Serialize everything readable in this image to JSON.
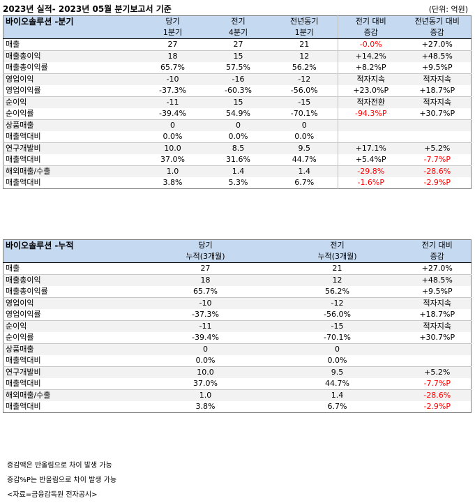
{
  "title": "2023년 실적- 2023년 05월 분기보고서 기준",
  "unit": "(단위: 억원)",
  "quarter": {
    "section": "바이오솔루션 -분기",
    "headers": [
      [
        "당기",
        "1분기"
      ],
      [
        "전기",
        "4분기"
      ],
      [
        "전년동기",
        "1분기"
      ],
      [
        "전기 대비",
        "증감"
      ],
      [
        "전년동기 대비",
        "증감"
      ]
    ],
    "rows": [
      {
        "label": "매출",
        "cur": "27",
        "prev": "27",
        "yoy": "21",
        "chg_prev": "-0.0%",
        "chg_prev_red": true,
        "chg_yoy": "+27.0%",
        "chg_yoy_red": false,
        "shade": false,
        "end": true
      },
      {
        "label": "매출총이익",
        "cur": "18",
        "prev": "15",
        "yoy": "12",
        "chg_prev": "+14.2%",
        "chg_prev_red": false,
        "chg_yoy": "+48.5%",
        "chg_yoy_red": false,
        "shade": true,
        "end": false
      },
      {
        "label": " 매출총이익률",
        "cur": "65.7%",
        "prev": "57.5%",
        "yoy": "56.2%",
        "chg_prev": "+8.2%P",
        "chg_prev_red": false,
        "chg_yoy": "+9.5%P",
        "chg_yoy_red": false,
        "shade": false,
        "end": true
      },
      {
        "label": "영업이익",
        "cur": "-10",
        "prev": "-16",
        "yoy": "-12",
        "chg_prev": "적자지속",
        "chg_prev_red": false,
        "chg_yoy": "적자지속",
        "chg_yoy_red": false,
        "shade": true,
        "end": false
      },
      {
        "label": " 영업이익률",
        "cur": "-37.3%",
        "prev": "-60.3%",
        "yoy": "-56.0%",
        "chg_prev": "+23.0%P",
        "chg_prev_red": false,
        "chg_yoy": "+18.7%P",
        "chg_yoy_red": false,
        "shade": false,
        "end": true
      },
      {
        "label": "순이익",
        "cur": "-11",
        "prev": "15",
        "yoy": "-15",
        "chg_prev": "적자전환",
        "chg_prev_red": false,
        "chg_yoy": "적자지속",
        "chg_yoy_red": false,
        "shade": true,
        "end": false
      },
      {
        "label": " 순이익률",
        "cur": "-39.4%",
        "prev": "54.9%",
        "yoy": "-70.1%",
        "chg_prev": "-94.3%P",
        "chg_prev_red": true,
        "chg_yoy": "+30.7%P",
        "chg_yoy_red": false,
        "shade": false,
        "end": true
      },
      {
        "label": "상품매출",
        "cur": "0",
        "prev": "0",
        "yoy": "0",
        "chg_prev": "",
        "chg_prev_red": false,
        "chg_yoy": "",
        "chg_yoy_red": false,
        "shade": true,
        "end": false
      },
      {
        "label": " 매출액대비",
        "cur": "0.0%",
        "prev": "0.0%",
        "yoy": "0.0%",
        "chg_prev": "",
        "chg_prev_red": false,
        "chg_yoy": "",
        "chg_yoy_red": false,
        "shade": false,
        "end": true
      },
      {
        "label": "연구개발비",
        "cur": "10.0",
        "prev": "8.5",
        "yoy": "9.5",
        "chg_prev": "+17.1%",
        "chg_prev_red": false,
        "chg_yoy": "+5.2%",
        "chg_yoy_red": false,
        "shade": true,
        "end": false
      },
      {
        "label": " 매출액대비",
        "cur": "37.0%",
        "prev": "31.6%",
        "yoy": "44.7%",
        "chg_prev": "+5.4%P",
        "chg_prev_red": false,
        "chg_yoy": "-7.7%P",
        "chg_yoy_red": true,
        "shade": false,
        "end": true
      },
      {
        "label": "해외매출/수출",
        "cur": "1.0",
        "prev": "1.4",
        "yoy": "1.4",
        "chg_prev": "-29.8%",
        "chg_prev_red": true,
        "chg_yoy": "-28.6%",
        "chg_yoy_red": true,
        "shade": true,
        "end": false
      },
      {
        "label": " 매출액대비",
        "cur": "3.8%",
        "prev": "5.3%",
        "yoy": "6.7%",
        "chg_prev": "-1.6%P",
        "chg_prev_red": true,
        "chg_yoy": "-2.9%P",
        "chg_yoy_red": true,
        "shade": false,
        "end": false
      }
    ]
  },
  "cumulative": {
    "section": "바이오솔루션 -누적",
    "headers": [
      [
        "당기",
        "누적(3개월)"
      ],
      [
        "전기",
        "누적(3개월)"
      ],
      [
        "전기 대비",
        "증감"
      ]
    ],
    "rows": [
      {
        "label": "매출",
        "cur": "27",
        "prev": "21",
        "chg": "+27.0%",
        "chg_red": false,
        "shade": false,
        "end": true
      },
      {
        "label": "매출총이익",
        "cur": "18",
        "prev": "12",
        "chg": "+48.5%",
        "chg_red": false,
        "shade": true,
        "end": false
      },
      {
        "label": " 매출총이익률",
        "cur": "65.7%",
        "prev": "56.2%",
        "chg": "+9.5%P",
        "chg_red": false,
        "shade": false,
        "end": true
      },
      {
        "label": "영업이익",
        "cur": "-10",
        "prev": "-12",
        "chg": "적자지속",
        "chg_red": false,
        "shade": true,
        "end": false
      },
      {
        "label": " 영업이익률",
        "cur": "-37.3%",
        "prev": "-56.0%",
        "chg": "+18.7%P",
        "chg_red": false,
        "shade": false,
        "end": true
      },
      {
        "label": "순이익",
        "cur": "-11",
        "prev": "-15",
        "chg": "적자지속",
        "chg_red": false,
        "shade": true,
        "end": false
      },
      {
        "label": " 순이익률",
        "cur": "-39.4%",
        "prev": "-70.1%",
        "chg": "+30.7%P",
        "chg_red": false,
        "shade": false,
        "end": true
      },
      {
        "label": "상품매출",
        "cur": "0",
        "prev": "0",
        "chg": "",
        "chg_red": false,
        "shade": true,
        "end": false
      },
      {
        "label": " 매출액대비",
        "cur": "0.0%",
        "prev": "0.0%",
        "chg": "",
        "chg_red": false,
        "shade": false,
        "end": true
      },
      {
        "label": "연구개발비",
        "cur": "10.0",
        "prev": "9.5",
        "chg": "+5.2%",
        "chg_red": false,
        "shade": true,
        "end": false
      },
      {
        "label": " 매출액대비",
        "cur": "37.0%",
        "prev": "44.7%",
        "chg": "-7.7%P",
        "chg_red": true,
        "shade": false,
        "end": true
      },
      {
        "label": "해외매출/수출",
        "cur": "1.0",
        "prev": "1.4",
        "chg": "-28.6%",
        "chg_red": true,
        "shade": true,
        "end": false
      },
      {
        "label": " 매출액대비",
        "cur": "3.8%",
        "prev": "6.7%",
        "chg": "-2.9%P",
        "chg_red": true,
        "shade": false,
        "end": false
      }
    ]
  },
  "notes": [
    "증감액은 반올림으로 차이 발생 가능",
    "증감%P는 반올림으로 차이 발생 가능",
    "<자료=금융감독원 전자공시>"
  ],
  "colors": {
    "header_bg": "#c5d9f1",
    "negative": "#ff0000",
    "row_shade": "#f2f2f2"
  }
}
